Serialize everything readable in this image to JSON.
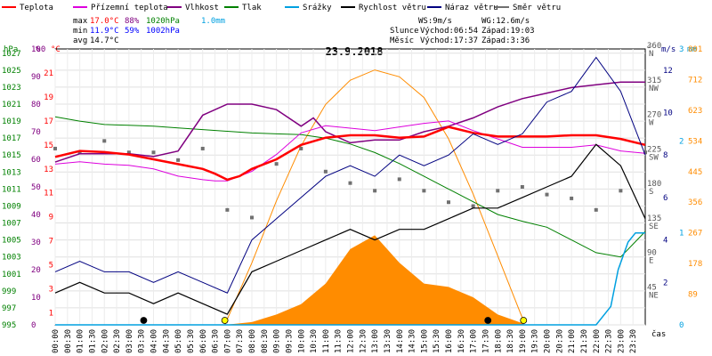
{
  "title": "23.9.2018",
  "legend": [
    {
      "label": "Teplota",
      "color": "#ff0000"
    },
    {
      "label": "Přízemní teplota",
      "color": "#dd00dd"
    },
    {
      "label": "Vlhkost",
      "color": "#800080"
    },
    {
      "label": "Tlak",
      "color": "#008000"
    },
    {
      "label": "Srážky",
      "color": "#00a0e0"
    },
    {
      "label": "Rychlost větru",
      "color": "#000000"
    },
    {
      "label": "Náraz větru",
      "color": "#000080"
    },
    {
      "label": "Směr větru",
      "color": "#707070"
    }
  ],
  "stats": {
    "rows": [
      {
        "label": "max",
        "temp": "17.0°C",
        "hum": "88%",
        "press": "1020hPa",
        "rain": "1.0mm"
      },
      {
        "label": "min",
        "temp": "11.9°C",
        "hum": "59%",
        "press": "1002hPa",
        "rain": ""
      },
      {
        "label": "avg",
        "temp": "14.7°C",
        "hum": "",
        "press": "",
        "rain": ""
      }
    ],
    "ws": "WS:9m/s",
    "wg": "WG:12.6m/s",
    "sun": {
      "label": "Slunce",
      "rise": "Východ:06:54",
      "set": "Západ:19:03"
    },
    "moon": {
      "label": "Měsíc",
      "rise": "Východ:17:37",
      "set": "Západ:3:36"
    }
  },
  "axes": {
    "hpa_label": "hPa",
    "pct_label": "%",
    "c_label": "°C",
    "deg_label": "°",
    "ms_label": "m/s",
    "mm_label": "mm",
    "wm2_label": "W/m²",
    "x_label": "čas",
    "hpa_ticks": [
      "1027",
      "1025",
      "1023",
      "1021",
      "1019",
      "1017",
      "1015",
      "1013",
      "1011",
      "1009",
      "1007",
      "1005",
      "1003",
      "1001",
      "999",
      "997",
      "995"
    ],
    "pct_ticks": [
      "100",
      "90",
      "80",
      "70",
      "60",
      "50",
      "40",
      "30",
      "20",
      "10",
      "0"
    ],
    "c_ticks": [
      "21",
      "19",
      "17",
      "15",
      "13",
      "11",
      "9",
      "7",
      "5",
      "3",
      "1"
    ],
    "deg_ticks": [
      "360",
      "315",
      "270",
      "225",
      "180",
      "135",
      "90",
      "45"
    ],
    "deg_names": [
      "N",
      "NW",
      "W",
      "SW",
      "S",
      "SE",
      "E",
      "NE"
    ],
    "ms_ticks": [
      "3",
      "2",
      "1",
      "0"
    ],
    "mm_ticks": [
      "3",
      "2",
      "1",
      "0"
    ],
    "wind_ticks": [
      "12",
      "10",
      "8",
      "6",
      "4",
      "2"
    ],
    "solar_ticks": [
      "801",
      "712",
      "623",
      "534",
      "445",
      "356",
      "267",
      "178",
      "89"
    ],
    "x_ticks": [
      "00:00",
      "00:30",
      "01:00",
      "01:30",
      "02:00",
      "02:30",
      "03:00",
      "03:30",
      "04:00",
      "04:30",
      "05:00",
      "05:30",
      "06:00",
      "06:30",
      "07:00",
      "07:30",
      "08:00",
      "08:30",
      "09:00",
      "09:30",
      "10:00",
      "10:30",
      "11:00",
      "11:30",
      "12:00",
      "12:30",
      "13:00",
      "13:30",
      "14:00",
      "14:30",
      "15:00",
      "15:30",
      "16:00",
      "16:30",
      "17:00",
      "17:30",
      "18:00",
      "18:30",
      "19:00",
      "19:30",
      "20:00",
      "20:30",
      "21:00",
      "21:30",
      "22:00",
      "22:30",
      "23:00",
      "23:30"
    ]
  },
  "chart_data": {
    "type": "line",
    "title": "23.9.2018",
    "x_unit": "hour",
    "xlim": [
      0,
      24
    ],
    "series": [
      {
        "name": "Teplota",
        "unit": "°C",
        "color": "#ff0000",
        "x": [
          0,
          1,
          2,
          3,
          4,
          5,
          6,
          6.5,
          7,
          7.5,
          8,
          9,
          10,
          11,
          12,
          13,
          14,
          15,
          16,
          17,
          18,
          19,
          20,
          21,
          22,
          23,
          24
        ],
        "y": [
          14.0,
          14.5,
          14.4,
          14.2,
          13.8,
          13.4,
          13.0,
          12.6,
          12.1,
          12.4,
          13.0,
          13.8,
          15.0,
          15.6,
          15.8,
          15.8,
          15.6,
          15.7,
          16.5,
          16.0,
          15.7,
          15.7,
          15.7,
          15.8,
          15.8,
          15.5,
          15.0
        ]
      },
      {
        "name": "Přízemní teplota",
        "unit": "°C",
        "color": "#dd00dd",
        "x": [
          0,
          1,
          2,
          3,
          4,
          5,
          6,
          6.5,
          7,
          8,
          9,
          10,
          11,
          12,
          13,
          14,
          15,
          16,
          17,
          18,
          19,
          20,
          21,
          22,
          23,
          24
        ],
        "y": [
          13.4,
          13.6,
          13.4,
          13.3,
          13.0,
          12.4,
          12.1,
          12.0,
          12.0,
          12.8,
          14.2,
          16.0,
          16.6,
          16.4,
          16.2,
          16.5,
          16.8,
          17.0,
          16.2,
          15.5,
          14.8,
          14.8,
          14.8,
          15.0,
          14.5,
          14.3
        ]
      },
      {
        "name": "Vlhkost",
        "unit": "%",
        "color": "#800080",
        "x": [
          0,
          1,
          2,
          3,
          4,
          5,
          6,
          7,
          8,
          9,
          10,
          10.5,
          11,
          12,
          13,
          14,
          15,
          16,
          17,
          18,
          19,
          20,
          21,
          22,
          23,
          24
        ],
        "y": [
          59,
          62,
          62,
          62,
          61,
          63,
          76,
          80,
          80,
          78,
          72,
          75,
          70,
          66,
          67,
          67,
          70,
          72,
          75,
          79,
          82,
          84,
          86,
          87,
          88,
          88
        ]
      },
      {
        "name": "Tlak",
        "unit": "hPa",
        "color": "#008000",
        "x": [
          0,
          1,
          2,
          3,
          4,
          5,
          6,
          7,
          8,
          9,
          10,
          11,
          12,
          13,
          14,
          15,
          16,
          17,
          18,
          19,
          20,
          21,
          22,
          23,
          24
        ],
        "y": [
          1019.5,
          1019.0,
          1018.6,
          1018.5,
          1018.4,
          1018.2,
          1018.0,
          1017.8,
          1017.6,
          1017.5,
          1017.4,
          1017.0,
          1016.3,
          1015.3,
          1014.0,
          1012.5,
          1011.0,
          1009.5,
          1008.0,
          1007.2,
          1006.5,
          1005.0,
          1003.5,
          1003.0,
          1006.0
        ]
      },
      {
        "name": "Rychlost větru",
        "unit": "m/s",
        "color": "#000000",
        "x": [
          0,
          1,
          2,
          3,
          4,
          5,
          6,
          7,
          8,
          9,
          10,
          11,
          12,
          13,
          14,
          15,
          16,
          17,
          18,
          19,
          20,
          21,
          22,
          23,
          24
        ],
        "y": [
          1.5,
          2.0,
          1.5,
          1.5,
          1.0,
          1.5,
          1.0,
          0.5,
          2.5,
          3.0,
          3.5,
          4.0,
          4.5,
          4.0,
          4.5,
          4.5,
          5.0,
          5.5,
          5.5,
          6.0,
          6.5,
          7.0,
          8.5,
          7.5,
          5.0
        ]
      },
      {
        "name": "Náraz větru",
        "unit": "m/s",
        "color": "#000080",
        "x": [
          0,
          1,
          2,
          3,
          4,
          5,
          6,
          7,
          8,
          9,
          10,
          11,
          12,
          13,
          14,
          15,
          16,
          17,
          18,
          19,
          20,
          21,
          22,
          23,
          24
        ],
        "y": [
          2.5,
          3.0,
          2.5,
          2.5,
          2.0,
          2.5,
          2.0,
          1.5,
          4.0,
          5.0,
          6.0,
          7.0,
          7.5,
          7.0,
          8.0,
          7.5,
          8.0,
          9.0,
          8.5,
          9.0,
          10.5,
          11.0,
          12.6,
          11.0,
          8.0
        ]
      },
      {
        "name": "Směr větru",
        "unit": "°",
        "color": "#707070",
        "x": [
          0,
          1,
          2,
          3,
          4,
          5,
          6,
          7,
          8,
          9,
          10,
          11,
          12,
          13,
          14,
          15,
          16,
          17,
          18,
          19,
          20,
          21,
          22,
          23,
          24
        ],
        "y": [
          230,
          225,
          240,
          225,
          225,
          215,
          230,
          150,
          140,
          210,
          230,
          200,
          185,
          175,
          190,
          175,
          160,
          155,
          175,
          180,
          170,
          165,
          150,
          175,
          225
        ]
      },
      {
        "name": "Srážky",
        "unit": "mm",
        "color": "#00a0e0",
        "x": [
          0,
          22,
          22.6,
          22.9,
          23.3,
          23.6,
          24
        ],
        "y": [
          0,
          0,
          0.2,
          0.6,
          0.9,
          1.0,
          1.0
        ]
      },
      {
        "name": "Solární záření",
        "unit": "W/m²",
        "color": "#ff8c00",
        "x": [
          6.9,
          8,
          9,
          10,
          11,
          12,
          13,
          14,
          15,
          16,
          17,
          18,
          19,
          19.05
        ],
        "y": [
          0,
          8,
          30,
          60,
          120,
          220,
          260,
          180,
          120,
          110,
          80,
          30,
          5,
          0
        ]
      }
    ],
    "solar_theoretical": {
      "x": [
        6.9,
        8,
        9,
        10,
        11,
        12,
        13,
        14,
        15,
        16,
        17,
        18,
        19,
        19.05
      ],
      "y": [
        0,
        180,
        360,
        520,
        640,
        710,
        740,
        720,
        660,
        540,
        380,
        200,
        20,
        0
      ]
    },
    "ylim": {
      "temp": [
        0,
        23
      ],
      "hum": [
        0,
        100
      ],
      "press": [
        995,
        1027.5
      ],
      "wind": [
        0,
        13
      ],
      "dir": [
        0,
        360
      ],
      "rain": [
        0,
        3
      ],
      "solar": [
        0,
        801
      ]
    }
  }
}
